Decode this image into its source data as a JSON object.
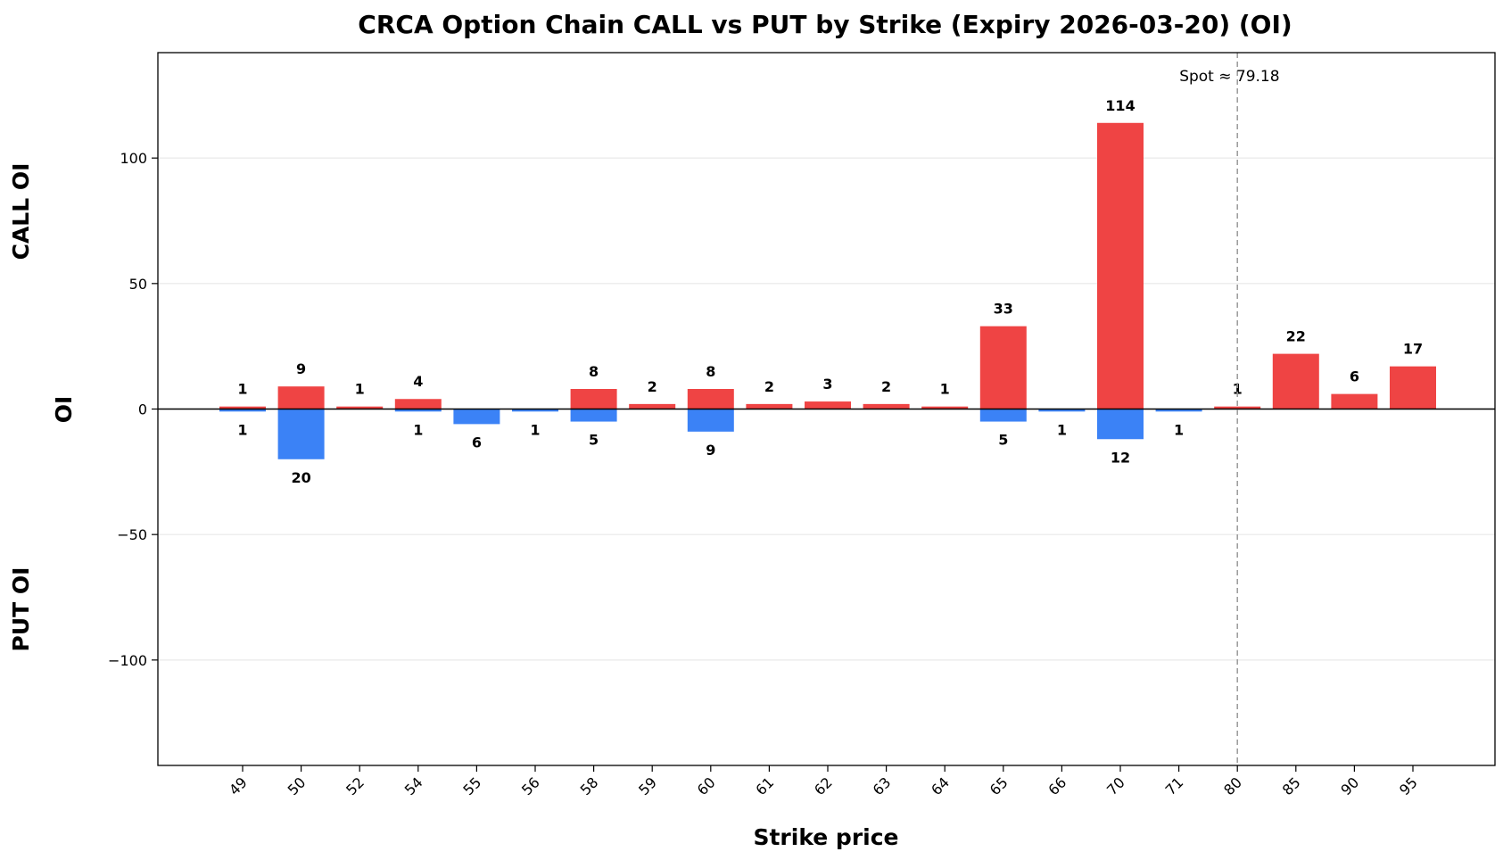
{
  "chart_data": {
    "type": "bar",
    "title": "CRCA Option Chain CALL vs PUT by Strike (Expiry 2026-03-20) (OI)",
    "xlabel": "Strike price",
    "ylabel": "OI",
    "ylabel_top": "CALL OI",
    "ylabel_bottom": "PUT OI",
    "categories": [
      "49",
      "50",
      "52",
      "54",
      "55",
      "56",
      "58",
      "59",
      "60",
      "61",
      "62",
      "63",
      "64",
      "65",
      "66",
      "70",
      "71",
      "80",
      "85",
      "90",
      "95"
    ],
    "ylim": [
      -142,
      142
    ],
    "yticks": [
      -100,
      -50,
      0,
      50,
      100
    ],
    "ytick_labels": [
      "−100",
      "−50",
      "0",
      "50",
      "100"
    ],
    "grid": "horizontal",
    "series": [
      {
        "name": "CALL",
        "color": "#ef4444",
        "values": [
          1,
          9,
          1,
          4,
          0,
          0,
          8,
          2,
          8,
          2,
          3,
          2,
          1,
          33,
          0,
          114,
          0,
          1,
          22,
          6,
          17
        ]
      },
      {
        "name": "PUT",
        "color": "#3b82f6",
        "values": [
          1,
          20,
          0,
          1,
          6,
          1,
          5,
          0,
          9,
          0,
          0,
          0,
          0,
          5,
          1,
          12,
          1,
          0,
          0,
          0,
          0
        ]
      }
    ],
    "spot": {
      "category_index": 17,
      "label": "Spot ≈ 79.18"
    }
  }
}
